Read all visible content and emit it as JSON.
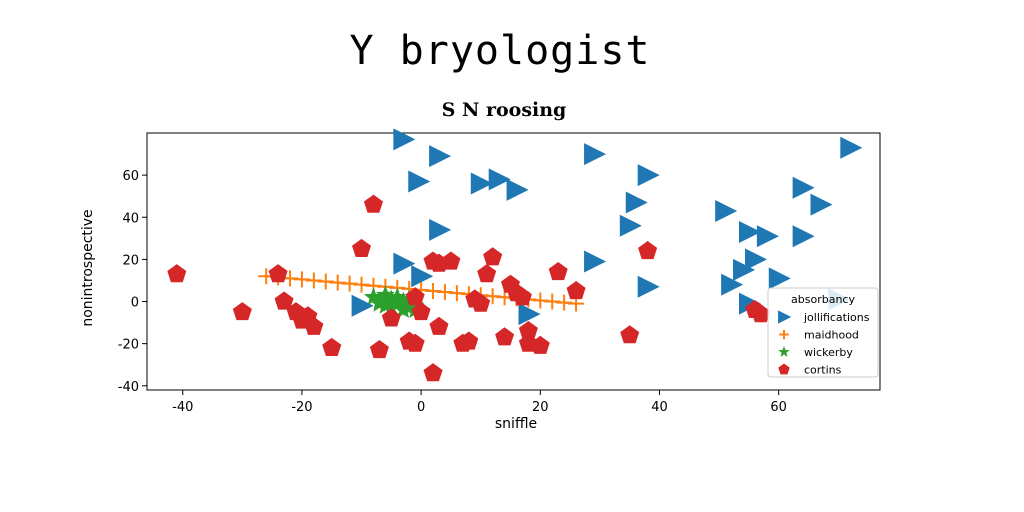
{
  "page_title": "Y bryologist",
  "chart_data": {
    "type": "scatter",
    "title": "S N roosing",
    "xlabel": "sniffle",
    "ylabel": "nonintrospective",
    "xlim": [
      -46,
      77
    ],
    "ylim": [
      -42,
      80
    ],
    "xticks": [
      -40,
      -20,
      0,
      20,
      40,
      60
    ],
    "yticks": [
      -40,
      -20,
      0,
      20,
      40,
      60
    ],
    "grid": false,
    "legend": {
      "title": "absorbancy",
      "placement": "lower-right"
    },
    "series": [
      {
        "name": "jollifications",
        "marker": "triangle-right",
        "color": "#1f77b4",
        "points": [
          [
            -3,
            77
          ],
          [
            3,
            69
          ],
          [
            -0.5,
            57
          ],
          [
            10,
            56
          ],
          [
            13,
            58
          ],
          [
            16,
            53
          ],
          [
            29,
            70
          ],
          [
            38,
            60
          ],
          [
            36,
            47
          ],
          [
            3,
            34
          ],
          [
            -3,
            18
          ],
          [
            0,
            12
          ],
          [
            -10,
            -2
          ],
          [
            29,
            19
          ],
          [
            35,
            36
          ],
          [
            38,
            7
          ],
          [
            18,
            -6
          ],
          [
            51,
            43
          ],
          [
            55,
            33
          ],
          [
            58,
            31
          ],
          [
            67,
            46
          ],
          [
            64,
            54
          ],
          [
            72,
            73
          ],
          [
            56,
            20
          ],
          [
            54,
            15
          ],
          [
            52,
            8
          ],
          [
            55,
            -1
          ],
          [
            60,
            11
          ],
          [
            64,
            31
          ],
          [
            70,
            1
          ]
        ]
      },
      {
        "name": "maidhood",
        "marker": "plus",
        "color": "#ff7f0e",
        "points": [
          [
            -26,
            12
          ],
          [
            -24,
            11.5
          ],
          [
            -22,
            11
          ],
          [
            -20,
            10.5
          ],
          [
            -18,
            10
          ],
          [
            -16,
            9.5
          ],
          [
            -14,
            9
          ],
          [
            -12,
            8.5
          ],
          [
            -10,
            8
          ],
          [
            -8,
            7.5
          ],
          [
            -6,
            7
          ],
          [
            -4,
            6.5
          ],
          [
            -2,
            6
          ],
          [
            0,
            5.5
          ],
          [
            2,
            5
          ],
          [
            4,
            4.5
          ],
          [
            6,
            4
          ],
          [
            8,
            3.5
          ],
          [
            10,
            3
          ],
          [
            12,
            2.5
          ],
          [
            14,
            2
          ],
          [
            16,
            1.5
          ],
          [
            18,
            1
          ],
          [
            20,
            0.5
          ],
          [
            22,
            0
          ],
          [
            24,
            -0.5
          ],
          [
            26,
            -1
          ]
        ]
      },
      {
        "name": "wickerby",
        "marker": "star",
        "color": "#2ca02c",
        "points": [
          [
            -8,
            2
          ],
          [
            -7,
            0
          ],
          [
            -6,
            -2
          ],
          [
            -5,
            1
          ],
          [
            -4,
            -1
          ],
          [
            -3,
            0
          ],
          [
            -2,
            -3
          ],
          [
            -1,
            -2
          ],
          [
            -6,
            3
          ],
          [
            -4,
            2
          ],
          [
            -2,
            1
          ],
          [
            -7,
            -1
          ],
          [
            -5,
            -3
          ],
          [
            -3,
            -4
          ],
          [
            -1,
            -4
          ]
        ]
      },
      {
        "name": "cortins",
        "marker": "pentagon",
        "color": "#d62728",
        "points": [
          [
            -41,
            13
          ],
          [
            -30,
            -5
          ],
          [
            -24,
            13
          ],
          [
            -23,
            0
          ],
          [
            -21,
            -5
          ],
          [
            -20,
            -9
          ],
          [
            -19,
            -7
          ],
          [
            -18,
            -12
          ],
          [
            -15,
            -22
          ],
          [
            -10,
            25
          ],
          [
            -8,
            46
          ],
          [
            -7,
            -23
          ],
          [
            -5,
            -8
          ],
          [
            -2,
            -19
          ],
          [
            -1,
            -20
          ],
          [
            -1,
            2
          ],
          [
            0,
            -5
          ],
          [
            2,
            -34
          ],
          [
            2,
            19
          ],
          [
            3,
            18
          ],
          [
            3,
            -12
          ],
          [
            5,
            19
          ],
          [
            7,
            -20
          ],
          [
            8,
            -19
          ],
          [
            9,
            1
          ],
          [
            10,
            -1
          ],
          [
            11,
            13
          ],
          [
            12,
            21
          ],
          [
            14,
            -17
          ],
          [
            15,
            8
          ],
          [
            16,
            4
          ],
          [
            17,
            2
          ],
          [
            18,
            -14
          ],
          [
            18,
            -20
          ],
          [
            20,
            -21
          ],
          [
            23,
            14
          ],
          [
            26,
            5
          ],
          [
            35,
            -16
          ],
          [
            38,
            24
          ],
          [
            56,
            -4
          ],
          [
            57,
            -6
          ]
        ]
      }
    ]
  }
}
